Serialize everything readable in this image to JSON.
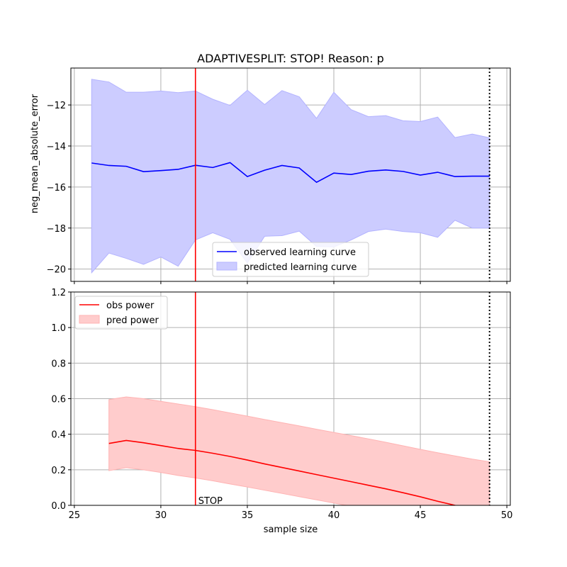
{
  "chart_data": {
    "type": "line",
    "title": "ADAPTIVESPLIT: STOP!  Reason: p",
    "xlabel": "sample size",
    "xlim": [
      24.8,
      50.2
    ],
    "xticks": [
      25,
      30,
      35,
      40,
      45,
      50
    ],
    "stop_x": 32,
    "stop_label": "STOP",
    "end_x": 49,
    "colors": {
      "observed": "#0000ff",
      "predicted_fill": "#ccccff",
      "predicted_edge": "#b3b3ff",
      "stop_line": "#ff0000",
      "obs_power": "#ff0000",
      "pred_power_fill": "#ffcccc",
      "pred_power_edge": "#ffb3b3",
      "grid": "#b0b0b0"
    },
    "panels": [
      {
        "id": "learning-curve",
        "ylabel": "neg_mean_absolute_error",
        "ylim": [
          -20.6,
          -10.2
        ],
        "yticks": [
          -20,
          -18,
          -16,
          -14,
          -12
        ],
        "yticklabels": [
          "−20",
          "−18",
          "−16",
          "−14",
          "−12"
        ],
        "legend_position": "lower-center",
        "series": [
          {
            "name": "observed learning curve",
            "kind": "line",
            "x": [
              26,
              27,
              28,
              29,
              30,
              31,
              32,
              33,
              34,
              35,
              36,
              37,
              38,
              39,
              40,
              41,
              42,
              43,
              44,
              45,
              46,
              47,
              48,
              49
            ],
            "y": [
              -14.83,
              -14.95,
              -14.99,
              -15.25,
              -15.2,
              -15.14,
              -14.94,
              -15.05,
              -14.81,
              -15.49,
              -15.18,
              -14.95,
              -15.07,
              -15.77,
              -15.32,
              -15.39,
              -15.23,
              -15.17,
              -15.24,
              -15.42,
              -15.28,
              -15.49,
              -15.47,
              -15.47
            ]
          },
          {
            "name": "predicted learning curve",
            "kind": "band",
            "x": [
              26,
              27,
              28,
              29,
              30,
              31,
              32,
              33,
              34,
              35,
              36,
              37,
              38,
              39,
              40,
              41,
              42,
              43,
              44,
              45,
              46,
              47,
              48,
              49
            ],
            "upper": [
              -10.75,
              -10.88,
              -11.38,
              -11.38,
              -11.32,
              -11.4,
              -11.32,
              -11.72,
              -12.02,
              -11.28,
              -11.98,
              -11.3,
              -11.6,
              -12.65,
              -11.38,
              -12.23,
              -12.57,
              -12.52,
              -12.77,
              -12.81,
              -12.59,
              -13.59,
              -13.42,
              -13.6
            ],
            "lower": [
              -20.18,
              -19.22,
              -19.48,
              -19.77,
              -19.41,
              -19.86,
              -18.58,
              -18.23,
              -18.55,
              -19.7,
              -18.4,
              -18.37,
              -18.15,
              -18.9,
              -18.92,
              -18.58,
              -18.17,
              -18.05,
              -18.17,
              -18.23,
              -18.45,
              -17.62,
              -18.0,
              -18.0
            ]
          }
        ]
      },
      {
        "id": "power",
        "ylabel": "",
        "ylim": [
          0.0,
          1.2
        ],
        "yticks": [
          0.0,
          0.2,
          0.4,
          0.6,
          0.8,
          1.0,
          1.2
        ],
        "yticklabels": [
          "0.0",
          "0.2",
          "0.4",
          "0.6",
          "0.8",
          "1.0",
          "1.2"
        ],
        "legend_position": "upper-left",
        "series": [
          {
            "name": "obs power",
            "kind": "line",
            "x": [
              27,
              28,
              29,
              30,
              31,
              32,
              33,
              34,
              35,
              36,
              37,
              38,
              39,
              40,
              41,
              42,
              43,
              44,
              45,
              46,
              47,
              48,
              49
            ],
            "y": [
              0.348,
              0.365,
              0.352,
              0.336,
              0.32,
              0.309,
              0.293,
              0.275,
              0.255,
              0.233,
              0.213,
              0.193,
              0.173,
              0.153,
              0.133,
              0.113,
              0.093,
              0.071,
              0.048,
              0.023,
              0.0,
              -0.02,
              -0.045
            ]
          },
          {
            "name": "pred power",
            "kind": "band",
            "x": [
              27,
              28,
              29,
              30,
              31,
              32,
              33,
              34,
              35,
              36,
              37,
              38,
              39,
              40,
              41,
              42,
              43,
              44,
              45,
              46,
              47,
              48,
              49
            ],
            "upper": [
              0.595,
              0.61,
              0.6,
              0.585,
              0.57,
              0.555,
              0.538,
              0.52,
              0.502,
              0.483,
              0.465,
              0.447,
              0.428,
              0.41,
              0.392,
              0.374,
              0.355,
              0.335,
              0.315,
              0.296,
              0.278,
              0.26,
              0.245
            ],
            "lower": [
              0.195,
              0.212,
              0.2,
              0.185,
              0.168,
              0.154,
              0.138,
              0.12,
              0.103,
              0.085,
              0.067,
              0.049,
              0.031,
              0.013,
              -0.005,
              -0.023,
              -0.041,
              -0.06,
              -0.079,
              -0.098,
              -0.117,
              -0.136,
              -0.155
            ]
          }
        ]
      }
    ]
  }
}
